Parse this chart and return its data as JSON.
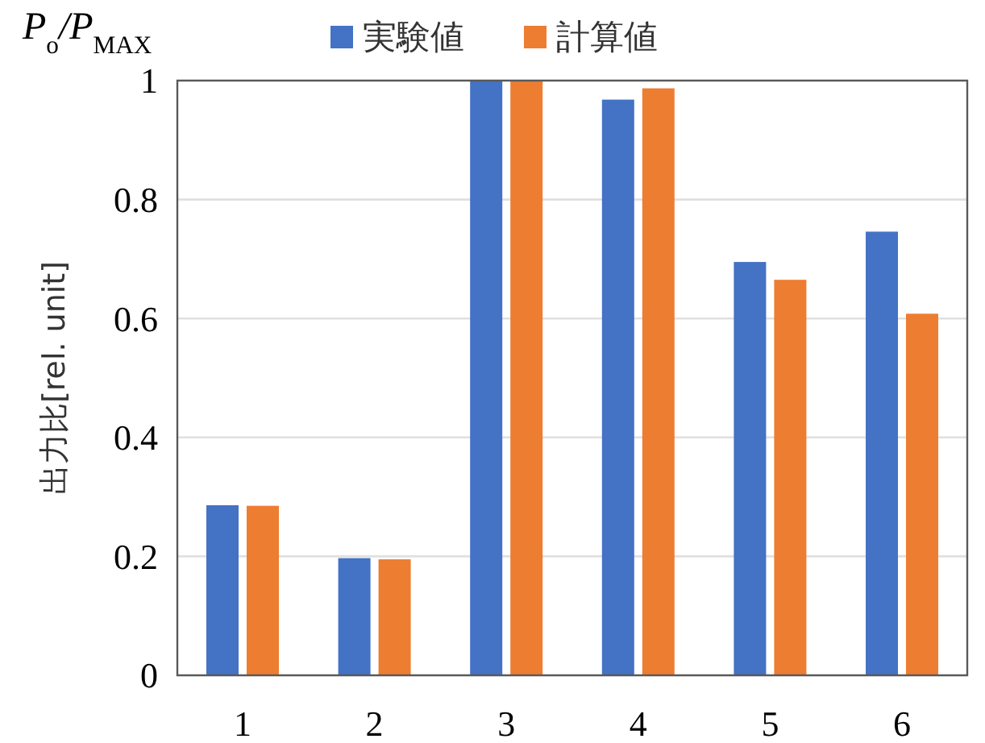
{
  "chart_data": {
    "type": "bar",
    "ylabel": "出力比[rel. unit]",
    "annotations": [
      "P$_{o}$/P$_{MAX}$"
    ],
    "categories": [
      "1",
      "2",
      "3",
      "4",
      "5",
      "6"
    ],
    "series": [
      {
        "name": "実験値",
        "color": "#4472c4",
        "values": [
          0.286,
          0.197,
          1,
          0.968,
          0.695,
          0.746
        ]
      },
      {
        "name": "計算値",
        "color": "#ed7d31",
        "values": [
          0.285,
          0.195,
          1,
          0.987,
          0.665,
          0.608
        ]
      }
    ],
    "ylim": [
      0,
      1
    ],
    "yticks": [
      0,
      0.2,
      0.4,
      0.6,
      0.8,
      1
    ],
    "grid": "y",
    "legend": "top"
  }
}
